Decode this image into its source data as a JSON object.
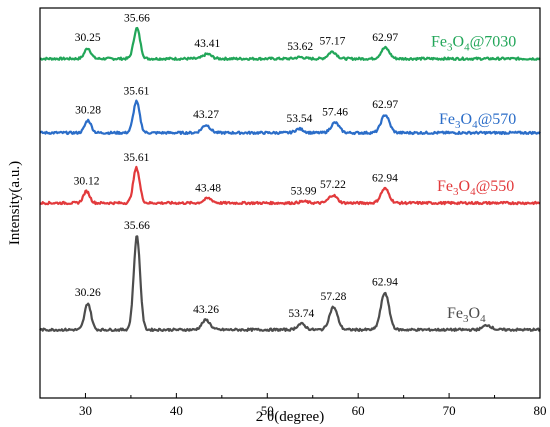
{
  "chart_data": {
    "type": "line",
    "title": "",
    "xlabel": "2 θ(degree)",
    "ylabel": "Intensity(a.u.)",
    "xlim": [
      25,
      80
    ],
    "xticks": [
      30,
      40,
      50,
      60,
      70,
      80
    ],
    "ylim": [
      0,
      1
    ],
    "grid": false,
    "legend_position": "right of each curve",
    "series": [
      {
        "name": "Fe3O4@7030",
        "label_parts": [
          "Fe",
          "3",
          "O",
          "4",
          "@7030"
        ],
        "color": "#22a659",
        "baseline": 0.87,
        "peaks": [
          {
            "x": 30.25,
            "h": 0.027,
            "label": "30.25"
          },
          {
            "x": 35.66,
            "h": 0.078,
            "label": "35.66"
          },
          {
            "x": 43.41,
            "h": 0.012,
            "label": "43.41"
          },
          {
            "x": 53.62,
            "h": 0.004,
            "label": "53.62"
          },
          {
            "x": 57.17,
            "h": 0.018,
            "label": "57.17"
          },
          {
            "x": 62.97,
            "h": 0.028,
            "label": "62.97"
          }
        ]
      },
      {
        "name": "Fe3O4@570",
        "label_parts": [
          "Fe",
          "3",
          "O",
          "4",
          "@570"
        ],
        "color": "#2b6dc8",
        "baseline": 0.68,
        "peaks": [
          {
            "x": 30.28,
            "h": 0.032,
            "label": "30.28"
          },
          {
            "x": 35.61,
            "h": 0.08,
            "label": "35.61"
          },
          {
            "x": 43.27,
            "h": 0.02,
            "label": "43.27"
          },
          {
            "x": 53.54,
            "h": 0.01,
            "label": "53.54"
          },
          {
            "x": 57.46,
            "h": 0.026,
            "label": "57.46"
          },
          {
            "x": 62.97,
            "h": 0.046,
            "label": "62.97"
          }
        ]
      },
      {
        "name": "Fe3O4@550",
        "label_parts": [
          "Fe",
          "3",
          "O",
          "4",
          "@550"
        ],
        "color": "#e23a3c",
        "baseline": 0.5,
        "peaks": [
          {
            "x": 30.12,
            "h": 0.03,
            "label": "30.12"
          },
          {
            "x": 35.61,
            "h": 0.09,
            "label": "35.61"
          },
          {
            "x": 43.48,
            "h": 0.012,
            "label": "43.48"
          },
          {
            "x": 53.99,
            "h": 0.004,
            "label": "53.99"
          },
          {
            "x": 57.22,
            "h": 0.02,
            "label": "57.22"
          },
          {
            "x": 62.94,
            "h": 0.037,
            "label": "62.94"
          }
        ]
      },
      {
        "name": "Fe3O4",
        "label_parts": [
          "Fe",
          "3",
          "O",
          "4",
          ""
        ],
        "color": "#4d4d4d",
        "baseline": 0.175,
        "peaks": [
          {
            "x": 30.26,
            "h": 0.068,
            "label": "30.26"
          },
          {
            "x": 35.66,
            "h": 0.24,
            "label": "35.66"
          },
          {
            "x": 43.26,
            "h": 0.025,
            "label": "43.26"
          },
          {
            "x": 53.74,
            "h": 0.015,
            "label": "53.74"
          },
          {
            "x": 57.28,
            "h": 0.058,
            "label": "57.28"
          },
          {
            "x": 62.94,
            "h": 0.095,
            "label": "62.94"
          },
          {
            "x": 74.2,
            "h": 0.012,
            "label": ""
          }
        ]
      }
    ]
  }
}
